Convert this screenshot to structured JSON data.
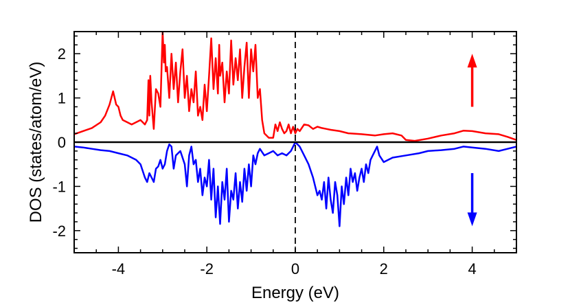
{
  "chart_data": {
    "type": "line",
    "title": "",
    "xlabel": "Energy (eV)",
    "ylabel": "DOS (states/atom/eV)",
    "xlim": [
      -5,
      5
    ],
    "ylim": [
      -2.5,
      2.5
    ],
    "x_ticks": [
      -4,
      -2,
      0,
      2,
      4
    ],
    "x_tick_labels": [
      "-4",
      "-2",
      "0",
      "2",
      "4"
    ],
    "y_ticks": [
      -2,
      -1,
      0,
      1,
      2
    ],
    "y_tick_labels": [
      "-2",
      "-1",
      "0",
      "1",
      "2"
    ],
    "fermi_level": 0,
    "series": [
      {
        "name": "spin up",
        "color": "#ff0000",
        "x": [
          -5.0,
          -4.8,
          -4.6,
          -4.4,
          -4.3,
          -4.2,
          -4.12,
          -4.05,
          -4.0,
          -3.95,
          -3.9,
          -3.8,
          -3.7,
          -3.6,
          -3.5,
          -3.4,
          -3.35,
          -3.32,
          -3.3,
          -3.28,
          -3.25,
          -3.2,
          -3.15,
          -3.1,
          -3.05,
          -3.0,
          -2.97,
          -2.95,
          -2.93,
          -2.9,
          -2.85,
          -2.8,
          -2.75,
          -2.7,
          -2.65,
          -2.6,
          -2.55,
          -2.5,
          -2.45,
          -2.4,
          -2.35,
          -2.3,
          -2.25,
          -2.2,
          -2.15,
          -2.1,
          -2.05,
          -2.0,
          -1.95,
          -1.9,
          -1.85,
          -1.8,
          -1.75,
          -1.72,
          -1.7,
          -1.65,
          -1.6,
          -1.55,
          -1.5,
          -1.45,
          -1.4,
          -1.35,
          -1.3,
          -1.25,
          -1.2,
          -1.15,
          -1.1,
          -1.05,
          -1.0,
          -0.95,
          -0.9,
          -0.85,
          -0.8,
          -0.75,
          -0.7,
          -0.6,
          -0.5,
          -0.45,
          -0.4,
          -0.35,
          -0.3,
          -0.25,
          -0.2,
          -0.15,
          -0.1,
          -0.05,
          0.0,
          0.05,
          0.1,
          0.2,
          0.3,
          0.4,
          0.5,
          0.6,
          0.7,
          0.8,
          1.0,
          1.2,
          1.5,
          1.8,
          2.0,
          2.2,
          2.4,
          2.5,
          2.7,
          3.0,
          3.3,
          3.6,
          3.8,
          4.0,
          4.3,
          4.6,
          4.8,
          5.0
        ],
        "y": [
          0.18,
          0.25,
          0.32,
          0.45,
          0.6,
          0.85,
          1.15,
          0.85,
          0.8,
          0.6,
          0.5,
          0.45,
          0.4,
          0.45,
          0.5,
          0.4,
          0.5,
          1.4,
          0.6,
          1.5,
          0.9,
          0.3,
          1.2,
          1.1,
          0.8,
          2.5,
          1.8,
          2.2,
          1.6,
          1.7,
          1.0,
          2.0,
          1.2,
          1.8,
          0.9,
          1.6,
          2.1,
          1.0,
          1.5,
          0.7,
          1.2,
          0.9,
          1.6,
          0.6,
          0.8,
          0.5,
          1.3,
          0.7,
          1.5,
          2.35,
          1.2,
          1.9,
          1.1,
          2.2,
          1.5,
          1.8,
          0.9,
          1.6,
          1.1,
          2.3,
          1.3,
          1.9,
          1.4,
          2.1,
          1.0,
          1.7,
          2.25,
          1.0,
          2.1,
          1.6,
          2.2,
          1.0,
          1.2,
          0.5,
          0.2,
          0.1,
          0.1,
          0.4,
          0.25,
          0.45,
          0.3,
          0.2,
          0.25,
          0.4,
          0.2,
          0.35,
          0.2,
          0.3,
          0.25,
          0.4,
          0.38,
          0.3,
          0.35,
          0.32,
          0.3,
          0.28,
          0.25,
          0.2,
          0.18,
          0.15,
          0.18,
          0.2,
          0.15,
          0.05,
          0.03,
          0.08,
          0.15,
          0.2,
          0.26,
          0.25,
          0.2,
          0.18,
          0.12,
          0.05
        ]
      },
      {
        "name": "spin down",
        "color": "#0000ff",
        "x": [
          -5.0,
          -4.8,
          -4.6,
          -4.4,
          -4.2,
          -4.0,
          -3.8,
          -3.6,
          -3.5,
          -3.4,
          -3.35,
          -3.3,
          -3.25,
          -3.2,
          -3.15,
          -3.1,
          -3.05,
          -3.0,
          -2.95,
          -2.9,
          -2.85,
          -2.8,
          -2.75,
          -2.7,
          -2.6,
          -2.5,
          -2.45,
          -2.4,
          -2.35,
          -2.3,
          -2.25,
          -2.2,
          -2.15,
          -2.1,
          -2.05,
          -2.0,
          -1.95,
          -1.9,
          -1.85,
          -1.8,
          -1.75,
          -1.7,
          -1.65,
          -1.6,
          -1.55,
          -1.5,
          -1.45,
          -1.4,
          -1.35,
          -1.3,
          -1.25,
          -1.2,
          -1.15,
          -1.1,
          -1.05,
          -1.0,
          -0.95,
          -0.9,
          -0.85,
          -0.8,
          -0.7,
          -0.6,
          -0.5,
          -0.4,
          -0.3,
          -0.2,
          -0.1,
          0.0,
          0.1,
          0.2,
          0.3,
          0.4,
          0.45,
          0.5,
          0.55,
          0.6,
          0.65,
          0.7,
          0.75,
          0.8,
          0.85,
          0.9,
          0.95,
          1.0,
          1.05,
          1.1,
          1.15,
          1.2,
          1.25,
          1.3,
          1.35,
          1.4,
          1.45,
          1.5,
          1.55,
          1.6,
          1.65,
          1.7,
          1.75,
          1.8,
          1.85,
          1.9,
          2.0,
          2.2,
          2.5,
          2.8,
          3.0,
          3.3,
          3.6,
          3.8,
          4.0,
          4.3,
          4.6,
          4.8,
          5.0
        ],
        "y": [
          -0.1,
          -0.12,
          -0.15,
          -0.18,
          -0.2,
          -0.25,
          -0.3,
          -0.4,
          -0.5,
          -0.8,
          -0.9,
          -0.7,
          -0.8,
          -0.9,
          -0.6,
          -0.55,
          -0.4,
          -0.6,
          -0.5,
          -0.2,
          -0.05,
          -0.1,
          -0.6,
          -0.3,
          -0.2,
          -0.5,
          -1.0,
          -0.3,
          -0.1,
          -0.5,
          -0.4,
          -0.9,
          -0.6,
          -1.2,
          -0.8,
          -1.0,
          -0.4,
          -1.3,
          -0.6,
          -1.7,
          -1.0,
          -1.85,
          -0.9,
          -1.3,
          -0.6,
          -1.8,
          -1.1,
          -1.3,
          -0.7,
          -1.5,
          -0.9,
          -1.35,
          -0.6,
          -1.1,
          -0.5,
          -1.0,
          -0.3,
          -0.5,
          -0.25,
          -0.15,
          -0.3,
          -0.25,
          -0.2,
          -0.3,
          -0.25,
          -0.3,
          -0.2,
          0.0,
          -0.1,
          -0.3,
          -0.5,
          -0.8,
          -1.0,
          -1.2,
          -1.1,
          -1.3,
          -0.9,
          -1.5,
          -0.8,
          -1.3,
          -1.6,
          -0.9,
          -1.2,
          -1.9,
          -1.0,
          -1.4,
          -0.8,
          -1.2,
          -0.6,
          -0.9,
          -0.7,
          -1.1,
          -0.8,
          -0.6,
          -0.9,
          -0.5,
          -0.7,
          -0.4,
          -0.3,
          -0.2,
          -0.1,
          -0.3,
          -0.45,
          -0.35,
          -0.3,
          -0.25,
          -0.2,
          -0.18,
          -0.15,
          -0.1,
          -0.12,
          -0.15,
          -0.2,
          -0.15,
          -0.1
        ]
      }
    ],
    "arrows": [
      {
        "name": "spin-up-arrow",
        "x": 4,
        "y_from": 0.8,
        "y_to": 2.0,
        "color": "#ff0000"
      },
      {
        "name": "spin-down-arrow",
        "x": 4,
        "y_from": -0.7,
        "y_to": -1.9,
        "color": "#0000ff"
      }
    ]
  }
}
